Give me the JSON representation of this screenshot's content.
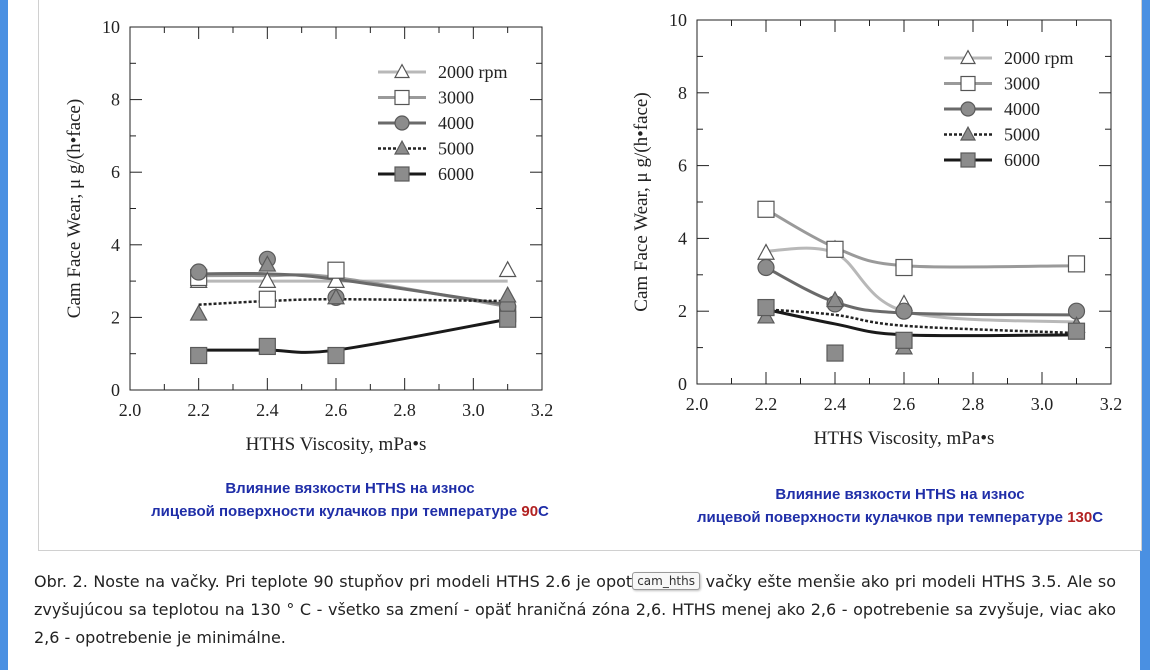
{
  "chart_data": [
    {
      "type": "line",
      "xlabel": "HTHS Viscosity, mPa•s",
      "ylabel": "Cam Face Wear,  μ g/(h•face)",
      "xlim": [
        2.0,
        3.2
      ],
      "ylim": [
        0,
        10
      ],
      "xticks": [
        "2.0",
        "2.2",
        "2.4",
        "2.6",
        "2.8",
        "3.0",
        "3.2"
      ],
      "yticks": [
        "0",
        "2",
        "4",
        "6",
        "8",
        "10"
      ],
      "legend_position": "top-right",
      "grid": false,
      "series": [
        {
          "name": "2000 rpm",
          "marker": "triangle-open",
          "line": "solid-light-gray",
          "points": [
            [
              2.2,
              3.0
            ],
            [
              2.4,
              3.0
            ],
            [
              2.6,
              3.0
            ],
            [
              3.1,
              3.3
            ]
          ],
          "curve": [
            [
              2.2,
              3.0
            ],
            [
              2.4,
              3.0
            ],
            [
              2.6,
              3.0
            ],
            [
              3.1,
              3.0
            ]
          ]
        },
        {
          "name": "3000",
          "marker": "square-open",
          "line": "solid-gray",
          "points": [
            [
              2.2,
              3.1
            ],
            [
              2.4,
              2.5
            ],
            [
              2.6,
              3.3
            ],
            [
              3.1,
              2.1
            ]
          ],
          "curve": [
            [
              2.2,
              3.15
            ],
            [
              2.4,
              3.15
            ],
            [
              2.6,
              3.1
            ],
            [
              3.1,
              2.3
            ]
          ]
        },
        {
          "name": "4000",
          "marker": "circle-gray",
          "line": "solid-dark-gray",
          "points": [
            [
              2.2,
              3.25
            ],
            [
              2.4,
              3.6
            ],
            [
              2.6,
              2.55
            ],
            [
              3.1,
              2.3
            ]
          ],
          "curve": [
            [
              2.2,
              3.2
            ],
            [
              2.4,
              3.2
            ],
            [
              2.6,
              3.05
            ],
            [
              3.1,
              2.35
            ]
          ]
        },
        {
          "name": "5000",
          "marker": "triangle-gray",
          "line": "dashed-black",
          "points": [
            [
              2.2,
              2.1
            ],
            [
              2.4,
              3.45
            ],
            [
              2.6,
              2.55
            ],
            [
              3.1,
              2.6
            ]
          ],
          "curve": [
            [
              2.2,
              2.35
            ],
            [
              2.4,
              2.45
            ],
            [
              2.6,
              2.5
            ],
            [
              3.1,
              2.45
            ]
          ]
        },
        {
          "name": "6000",
          "marker": "square-gray",
          "line": "solid-black",
          "points": [
            [
              2.2,
              0.95
            ],
            [
              2.4,
              1.2
            ],
            [
              2.6,
              0.95
            ],
            [
              3.1,
              1.95
            ]
          ],
          "curve": [
            [
              2.2,
              1.1
            ],
            [
              2.4,
              1.1
            ],
            [
              2.6,
              1.1
            ],
            [
              3.1,
              1.95
            ]
          ]
        }
      ]
    },
    {
      "type": "line",
      "xlabel": "HTHS Viscosity, mPa•s",
      "ylabel": "Cam Face Wear,  μ g/(h•face)",
      "xlim": [
        2.0,
        3.2
      ],
      "ylim": [
        0,
        10
      ],
      "xticks": [
        "2.0",
        "2.2",
        "2.4",
        "2.6",
        "2.8",
        "3.0",
        "3.2"
      ],
      "yticks": [
        "0",
        "2",
        "4",
        "6",
        "8",
        "10"
      ],
      "legend_position": "top-right",
      "grid": false,
      "series": [
        {
          "name": "2000 rpm",
          "marker": "triangle-open",
          "line": "solid-light-gray",
          "points": [
            [
              2.2,
              3.6
            ],
            [
              2.4,
              3.7
            ],
            [
              2.6,
              2.2
            ],
            [
              3.1,
              1.6
            ]
          ],
          "curve": [
            [
              2.2,
              3.65
            ],
            [
              2.4,
              3.6
            ],
            [
              2.6,
              2.0
            ],
            [
              3.1,
              1.7
            ]
          ]
        },
        {
          "name": "3000",
          "marker": "square-open",
          "line": "solid-gray",
          "points": [
            [
              2.2,
              4.8
            ],
            [
              2.4,
              3.7
            ],
            [
              2.6,
              3.2
            ],
            [
              3.1,
              3.3
            ]
          ],
          "curve": [
            [
              2.2,
              4.8
            ],
            [
              2.4,
              3.75
            ],
            [
              2.6,
              3.25
            ],
            [
              3.1,
              3.25
            ]
          ]
        },
        {
          "name": "4000",
          "marker": "circle-gray",
          "line": "solid-dark-gray",
          "points": [
            [
              2.2,
              3.2
            ],
            [
              2.4,
              2.2
            ],
            [
              2.6,
              2.0
            ],
            [
              3.1,
              2.0
            ]
          ],
          "curve": [
            [
              2.2,
              3.2
            ],
            [
              2.4,
              2.25
            ],
            [
              2.6,
              1.95
            ],
            [
              3.1,
              1.9
            ]
          ]
        },
        {
          "name": "5000",
          "marker": "triangle-gray",
          "line": "dashed-black",
          "points": [
            [
              2.2,
              1.85
            ],
            [
              2.4,
              2.3
            ],
            [
              2.6,
              1.0
            ],
            [
              3.1,
              1.6
            ]
          ],
          "curve": [
            [
              2.2,
              2.05
            ],
            [
              2.4,
              1.9
            ],
            [
              2.6,
              1.6
            ],
            [
              3.1,
              1.4
            ]
          ]
        },
        {
          "name": "6000",
          "marker": "square-gray",
          "line": "solid-black",
          "points": [
            [
              2.2,
              2.1
            ],
            [
              2.4,
              0.85
            ],
            [
              2.6,
              1.2
            ],
            [
              3.1,
              1.45
            ]
          ],
          "curve": [
            [
              2.2,
              2.05
            ],
            [
              2.4,
              1.65
            ],
            [
              2.6,
              1.35
            ],
            [
              3.1,
              1.35
            ]
          ]
        }
      ]
    }
  ],
  "captions": {
    "left": {
      "line1": "Влияние вязкости HTHS на износ",
      "line2": "лицевой поверхности кулачков при температуре ",
      "temp_num": "90",
      "temp_unit": "C"
    },
    "right": {
      "line1": "Влияние вязкости HTHS на износ",
      "line2": "лицевой поверхности кулачков при температуре ",
      "temp_num": "130",
      "temp_unit": "C"
    }
  },
  "body_text": {
    "before_tooltip": "Obr. 2. Noste na vačky. Pri teplote 90 stupňov pri modeli HTHS 2.6 je opot",
    "tooltip": "cam_hths",
    "after_tooltip": " vačky ešte menšie ako pri modeli HTHS 3.5. Ale so zvyšujúcou sa teplotou na 130 ° C - všetko sa zmení - opäť hraničná zóna 2,6. HTHS menej ako 2,6 - opotrebenie sa zvyšuje, viac ako 2,6 - opotrebenie je minimálne."
  },
  "colors": {
    "caption_blue": "#1f2ea8",
    "caption_red": "#b22222",
    "accent_bar": "#4a90e2"
  }
}
